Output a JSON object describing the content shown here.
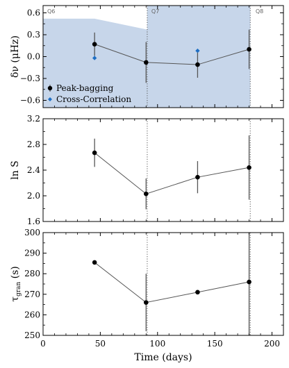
{
  "chart_data": [
    {
      "type": "scatter",
      "panel": "top",
      "ylabel": "δν (μHz)",
      "xlim": [
        0,
        210
      ],
      "ylim": [
        -0.7,
        0.7
      ],
      "yticks": [
        "0.6",
        "0.3",
        "0.0",
        "−0.3",
        "−0.6"
      ],
      "ytick_values": [
        0.6,
        0.3,
        0.0,
        -0.3,
        -0.6
      ],
      "quarters": [
        {
          "label": "Q6",
          "x": 0
        },
        {
          "label": "Q7",
          "x": 91
        },
        {
          "label": "Q8",
          "x": 182
        }
      ],
      "quarter_boundaries": [
        91,
        181
      ],
      "band": {
        "color": "#c7d6ea",
        "points": [
          [
            0,
            0.52
          ],
          [
            45,
            0.52
          ],
          [
            91,
            0.37
          ],
          [
            91,
            0.7
          ],
          [
            181,
            0.7
          ],
          [
            181,
            -0.7
          ],
          [
            91,
            -0.7
          ],
          [
            0,
            -0.7
          ]
        ]
      },
      "series": [
        {
          "name": "Peak-bagging",
          "color": "#000000",
          "x": [
            45,
            90,
            135,
            180
          ],
          "y": [
            0.17,
            -0.08,
            -0.11,
            0.1
          ],
          "yerr": [
            0.16,
            0.28,
            0.18,
            0.27
          ],
          "connected": true
        },
        {
          "name": "Cross-Correlation",
          "color": "#1f6fc4",
          "x": [
            45,
            135
          ],
          "y": [
            -0.02,
            0.08
          ],
          "connected": false
        }
      ],
      "legend": "lower-left"
    },
    {
      "type": "line",
      "panel": "middle",
      "ylabel": "ln S",
      "xlim": [
        0,
        210
      ],
      "ylim": [
        1.6,
        3.2
      ],
      "yticks": [
        "3.2",
        "2.8",
        "2.4",
        "2.0",
        "1.6"
      ],
      "ytick_values": [
        3.2,
        2.8,
        2.4,
        2.0,
        1.6
      ],
      "quarter_boundaries": [
        91,
        181
      ],
      "series": [
        {
          "name": "",
          "color": "#000000",
          "x": [
            45,
            90,
            135,
            180
          ],
          "y": [
            2.67,
            2.03,
            2.29,
            2.44
          ],
          "yerr": [
            0.22,
            0.24,
            0.25,
            0.5
          ],
          "connected": true
        }
      ]
    },
    {
      "type": "line",
      "panel": "bottom",
      "ylabel": "τ_gran (s)",
      "ylabel_main": "τ",
      "ylabel_sub": "gran",
      "ylabel_unit": "(s)",
      "xlabel": "Time (days)",
      "xlim": [
        0,
        210
      ],
      "ylim": [
        250,
        300
      ],
      "xticks": [
        "0",
        "50",
        "100",
        "150",
        "200"
      ],
      "xtick_values": [
        0,
        50,
        100,
        150,
        200
      ],
      "yticks": [
        "300",
        "290",
        "280",
        "270",
        "260",
        "250"
      ],
      "ytick_values": [
        300,
        290,
        280,
        270,
        260,
        250
      ],
      "quarter_boundaries": [
        91,
        181
      ],
      "series": [
        {
          "name": "",
          "color": "#000000",
          "x": [
            45,
            90,
            135,
            180
          ],
          "y": [
            285.5,
            266.0,
            271.0,
            276.0
          ],
          "yerr": [
            0.6,
            14.0,
            0.8,
            30.0
          ],
          "connected": true
        }
      ]
    }
  ]
}
